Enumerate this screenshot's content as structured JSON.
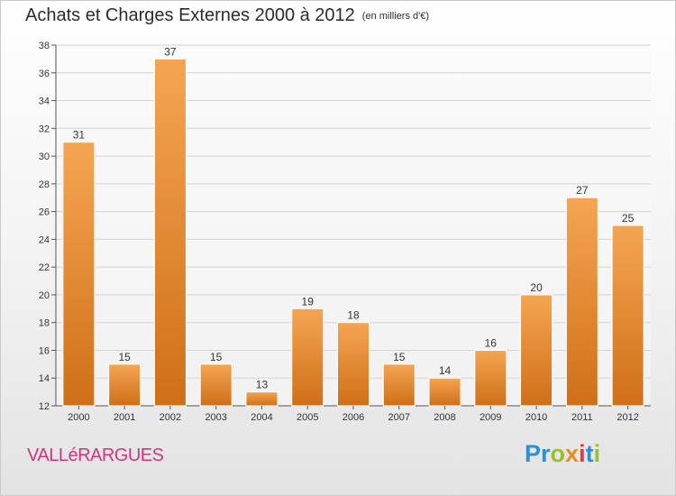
{
  "title": "Achats et Charges Externes 2000 à 2012",
  "unit_note": "(en milliers d'€)",
  "commune": "VALLéRARGUES",
  "logo": {
    "letters": [
      {
        "ch": "P",
        "color": "#2f8fd0"
      },
      {
        "ch": "r",
        "color": "#2f8fd0"
      },
      {
        "ch": "o",
        "color": "#9bbf2a"
      },
      {
        "ch": "x",
        "color": "#f08a1a"
      },
      {
        "ch": "i",
        "color": "#e23c3c"
      },
      {
        "ch": "t",
        "color": "#2f8fd0"
      },
      {
        "ch": "i",
        "color": "#9bbf2a"
      }
    ]
  },
  "chart_data": {
    "type": "bar",
    "categories": [
      "2000",
      "2001",
      "2002",
      "2003",
      "2004",
      "2005",
      "2006",
      "2007",
      "2008",
      "2009",
      "2010",
      "2011",
      "2012"
    ],
    "values": [
      31,
      15,
      37,
      15,
      13,
      19,
      18,
      15,
      14,
      16,
      20,
      27,
      25
    ],
    "ylim": [
      12,
      38
    ],
    "yticks": [
      12,
      14,
      16,
      18,
      20,
      22,
      24,
      26,
      28,
      30,
      32,
      34,
      36,
      38
    ],
    "grid": true,
    "bar_color_top": "#f5a552",
    "bar_color_bottom": "#cf6f18"
  }
}
